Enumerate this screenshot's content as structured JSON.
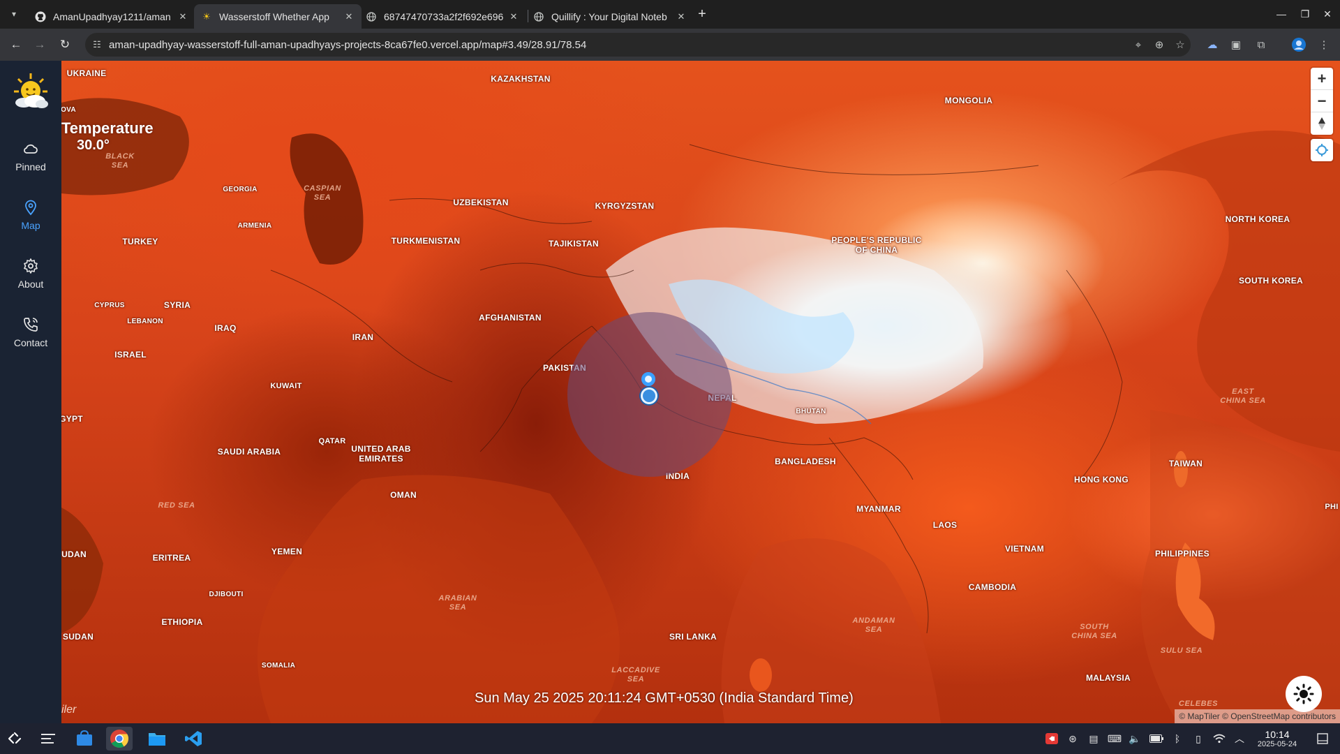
{
  "browser": {
    "tabs": [
      {
        "title": "AmanUpadhyay1211/aman",
        "icon": "github-icon"
      },
      {
        "title": "Wasserstoff Whether App",
        "icon": "sun-icon"
      },
      {
        "title": "68747470733a2f2f692e696",
        "icon": "globe-icon"
      },
      {
        "title": "Quillify : Your Digital Noteb",
        "icon": "globe-icon"
      }
    ],
    "active_tab": 1,
    "url": "aman-upadhyay-wasserstoff-full-aman-upadhyays-projects-8ca67fe0.vercel.app/map#3.49/28.91/78.54"
  },
  "sidebar": {
    "items": [
      {
        "label": "Pinned",
        "icon": "cloud-icon"
      },
      {
        "label": "Map",
        "icon": "map-pin-icon",
        "active": true
      },
      {
        "label": "About",
        "icon": "gear-icon"
      },
      {
        "label": "Contact",
        "icon": "phone-icon"
      }
    ]
  },
  "map": {
    "layer_title": "Temperature",
    "layer_value": "30.0°",
    "timestamp": "Sun May 25 2025 20:11:24 GMT+0530 (India Standard Time)",
    "attribution": "© MapTiler © OpenStreetMap contributors",
    "logo_text": "iler",
    "countries": {
      "ukraine": "UKRAINE",
      "kazakhstan": "KAZAKHSTAN",
      "mongolia": "MONGOLIA",
      "ova": "OVA",
      "georgia": "GEORGIA",
      "armenia": "ARMENIA",
      "uzbekistan": "UZBEKISTAN",
      "kyrgyzstan": "KYRGYZSTAN",
      "turkmenistan": "TURKMENISTAN",
      "tajikistan": "TAJIKISTAN",
      "turkey": "TURKEY",
      "china_1": "PEOPLE'S REPUBLIC",
      "china_2": "OF CHINA",
      "north_korea": "NORTH KOREA",
      "south_korea": "SOUTH KOREA",
      "cyprus": "CYPRUS",
      "syria": "SYRIA",
      "lebanon": "LEBANON",
      "iraq": "IRAQ",
      "iran": "IRAN",
      "afghanistan": "AFGHANISTAN",
      "israel": "ISRAEL",
      "pakistan": "PAKISTAN",
      "kuwait": "KUWAIT",
      "nepal": "NEPAL",
      "bhutan": "BHUTAN",
      "gypt": "GYPT",
      "qatar": "QATAR",
      "saudi_arabia": "SAUDI ARABIA",
      "uae_1": "UNITED ARAB",
      "uae_2": "EMIRATES",
      "bangladesh": "BANGLADESH",
      "india": "INDIA",
      "oman": "OMAN",
      "myanmar": "MYANMAR",
      "hong_kong": "HONG KONG",
      "taiwan": "TAIWAN",
      "laos": "LAOS",
      "vietnam": "VIETNAM",
      "philippines": "PHILIPPINES",
      "udan": "UDAN",
      "eritrea": "ERITREA",
      "yemen": "YEMEN",
      "cambodia": "CAMBODIA",
      "djibouti": "DJIBOUTI",
      "ethiopia": "ETHIOPIA",
      "sudan": "SUDAN",
      "sri_lanka": "SRI LANKA",
      "somalia": "SOMALIA",
      "malaysia": "MALAYSIA",
      "phi": "PHI"
    },
    "seas": {
      "black_1": "BLACK",
      "black_2": "SEA",
      "caspian_1": "CASPIAN",
      "caspian_2": "SEA",
      "east_china_1": "EAST",
      "east_china_2": "CHINA SEA",
      "red": "RED SEA",
      "arabian_1": "ARABIAN",
      "arabian_2": "SEA",
      "andaman_1": "ANDAMAN",
      "andaman_2": "SEA",
      "south_china_1": "SOUTH",
      "south_china_2": "CHINA SEA",
      "sulu": "SULU SEA",
      "laccadive_1": "LACCADIVE",
      "laccadive_2": "SEA",
      "celebes": "CELEBES"
    }
  },
  "taskbar": {
    "time": "10:14",
    "date": "2025-05-24"
  },
  "colors": {
    "sidebar_bg": "#1a2333",
    "accent": "#4aa3ff",
    "marker": "#3aa0ff"
  }
}
